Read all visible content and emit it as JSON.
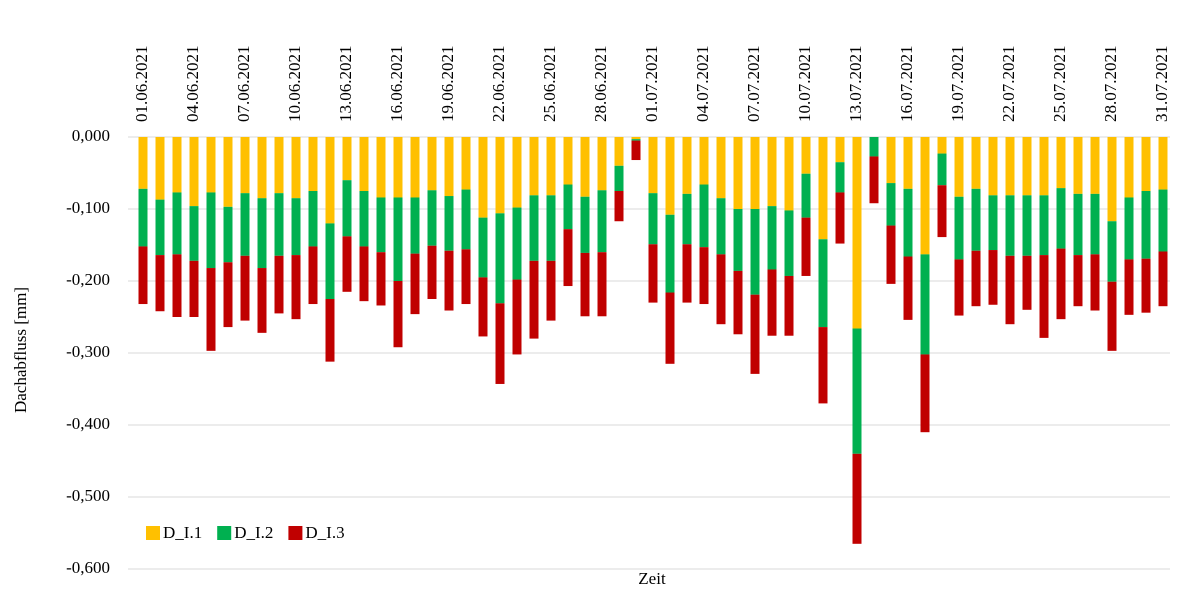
{
  "chart_data": {
    "type": "stacked_bar",
    "categories": [
      "01.06.2021",
      null,
      null,
      "04.06.2021",
      null,
      null,
      "07.06.2021",
      null,
      null,
      "10.06.2021",
      null,
      null,
      "13.06.2021",
      null,
      null,
      "16.06.2021",
      null,
      null,
      "19.06.2021",
      null,
      null,
      "22.06.2021",
      null,
      null,
      "25.06.2021",
      null,
      null,
      "28.06.2021",
      null,
      null,
      "01.07.2021",
      null,
      null,
      "04.07.2021",
      null,
      null,
      "07.07.2021",
      null,
      null,
      "10.07.2021",
      null,
      null,
      "13.07.2021",
      null,
      null,
      "16.07.2021",
      null,
      null,
      "19.07.2021",
      null,
      null,
      "22.07.2021",
      null,
      null,
      "25.07.2021",
      null,
      null,
      "28.07.2021",
      null,
      null,
      "31.07.2021"
    ],
    "series": [
      {
        "name": "D_I.1",
        "color": "#ffc000",
        "values": [
          -0.072,
          -0.087,
          -0.077,
          -0.096,
          -0.077,
          -0.097,
          -0.078,
          -0.085,
          -0.078,
          -0.085,
          -0.075,
          -0.12,
          -0.06,
          -0.075,
          -0.084,
          -0.084,
          -0.084,
          -0.074,
          -0.082,
          -0.073,
          -0.112,
          -0.106,
          -0.098,
          -0.081,
          -0.081,
          -0.066,
          -0.083,
          -0.074,
          -0.04,
          -0.003,
          -0.078,
          -0.108,
          -0.079,
          -0.066,
          -0.085,
          -0.1,
          -0.1,
          -0.096,
          -0.102,
          -0.051,
          -0.142,
          -0.035,
          -0.266,
          0,
          -0.064,
          -0.072,
          -0.163,
          -0.023,
          -0.083,
          -0.072,
          -0.081,
          -0.081,
          -0.081,
          -0.081,
          -0.071,
          -0.079,
          -0.079,
          -0.117,
          -0.084,
          -0.075,
          -0.073
        ]
      },
      {
        "name": "D_I.2",
        "color": "#00b050",
        "values": [
          -0.08,
          -0.077,
          -0.086,
          -0.076,
          -0.105,
          -0.077,
          -0.087,
          -0.097,
          -0.087,
          -0.079,
          -0.077,
          -0.105,
          -0.078,
          -0.077,
          -0.076,
          -0.116,
          -0.078,
          -0.077,
          -0.076,
          -0.083,
          -0.083,
          -0.125,
          -0.1,
          -0.091,
          -0.091,
          -0.062,
          -0.078,
          -0.086,
          -0.035,
          -0.002,
          -0.071,
          -0.108,
          -0.07,
          -0.087,
          -0.078,
          -0.086,
          -0.119,
          -0.088,
          -0.091,
          -0.061,
          -0.122,
          -0.042,
          -0.174,
          -0.027,
          -0.059,
          -0.094,
          -0.139,
          -0.044,
          -0.087,
          -0.086,
          -0.076,
          -0.084,
          -0.084,
          -0.083,
          -0.084,
          -0.085,
          -0.084,
          -0.084,
          -0.086,
          -0.094,
          -0.086
        ]
      },
      {
        "name": "D_I.3",
        "color": "#c00000",
        "values": [
          -0.08,
          -0.078,
          -0.087,
          -0.078,
          -0.115,
          -0.09,
          -0.09,
          -0.09,
          -0.08,
          -0.089,
          -0.08,
          -0.087,
          -0.077,
          -0.076,
          -0.074,
          -0.092,
          -0.084,
          -0.074,
          -0.083,
          -0.076,
          -0.082,
          -0.112,
          -0.104,
          -0.108,
          -0.083,
          -0.079,
          -0.088,
          -0.089,
          -0.042,
          -0.027,
          -0.081,
          -0.099,
          -0.081,
          -0.079,
          -0.097,
          -0.088,
          -0.11,
          -0.092,
          -0.083,
          -0.081,
          -0.106,
          -0.071,
          -0.125,
          -0.065,
          -0.081,
          -0.088,
          -0.108,
          -0.072,
          -0.078,
          -0.077,
          -0.076,
          -0.095,
          -0.075,
          -0.115,
          -0.098,
          -0.071,
          -0.078,
          -0.096,
          -0.077,
          -0.075,
          -0.076
        ]
      }
    ],
    "ylim": [
      -0.6,
      0
    ],
    "yticks": [
      {
        "value": 0,
        "label": "0,000"
      },
      {
        "value": -0.1,
        "label": "-0,100"
      },
      {
        "value": -0.2,
        "label": "-0,200"
      },
      {
        "value": -0.3,
        "label": "-0,300"
      },
      {
        "value": -0.4,
        "label": "-0,400"
      },
      {
        "value": -0.5,
        "label": "-0,500"
      },
      {
        "value": -0.6,
        "label": "-0,600"
      }
    ],
    "xlabel": "Zeit",
    "ylabel": "Dachabfluss [mm]",
    "grid": true,
    "legend": "bottom-left"
  }
}
